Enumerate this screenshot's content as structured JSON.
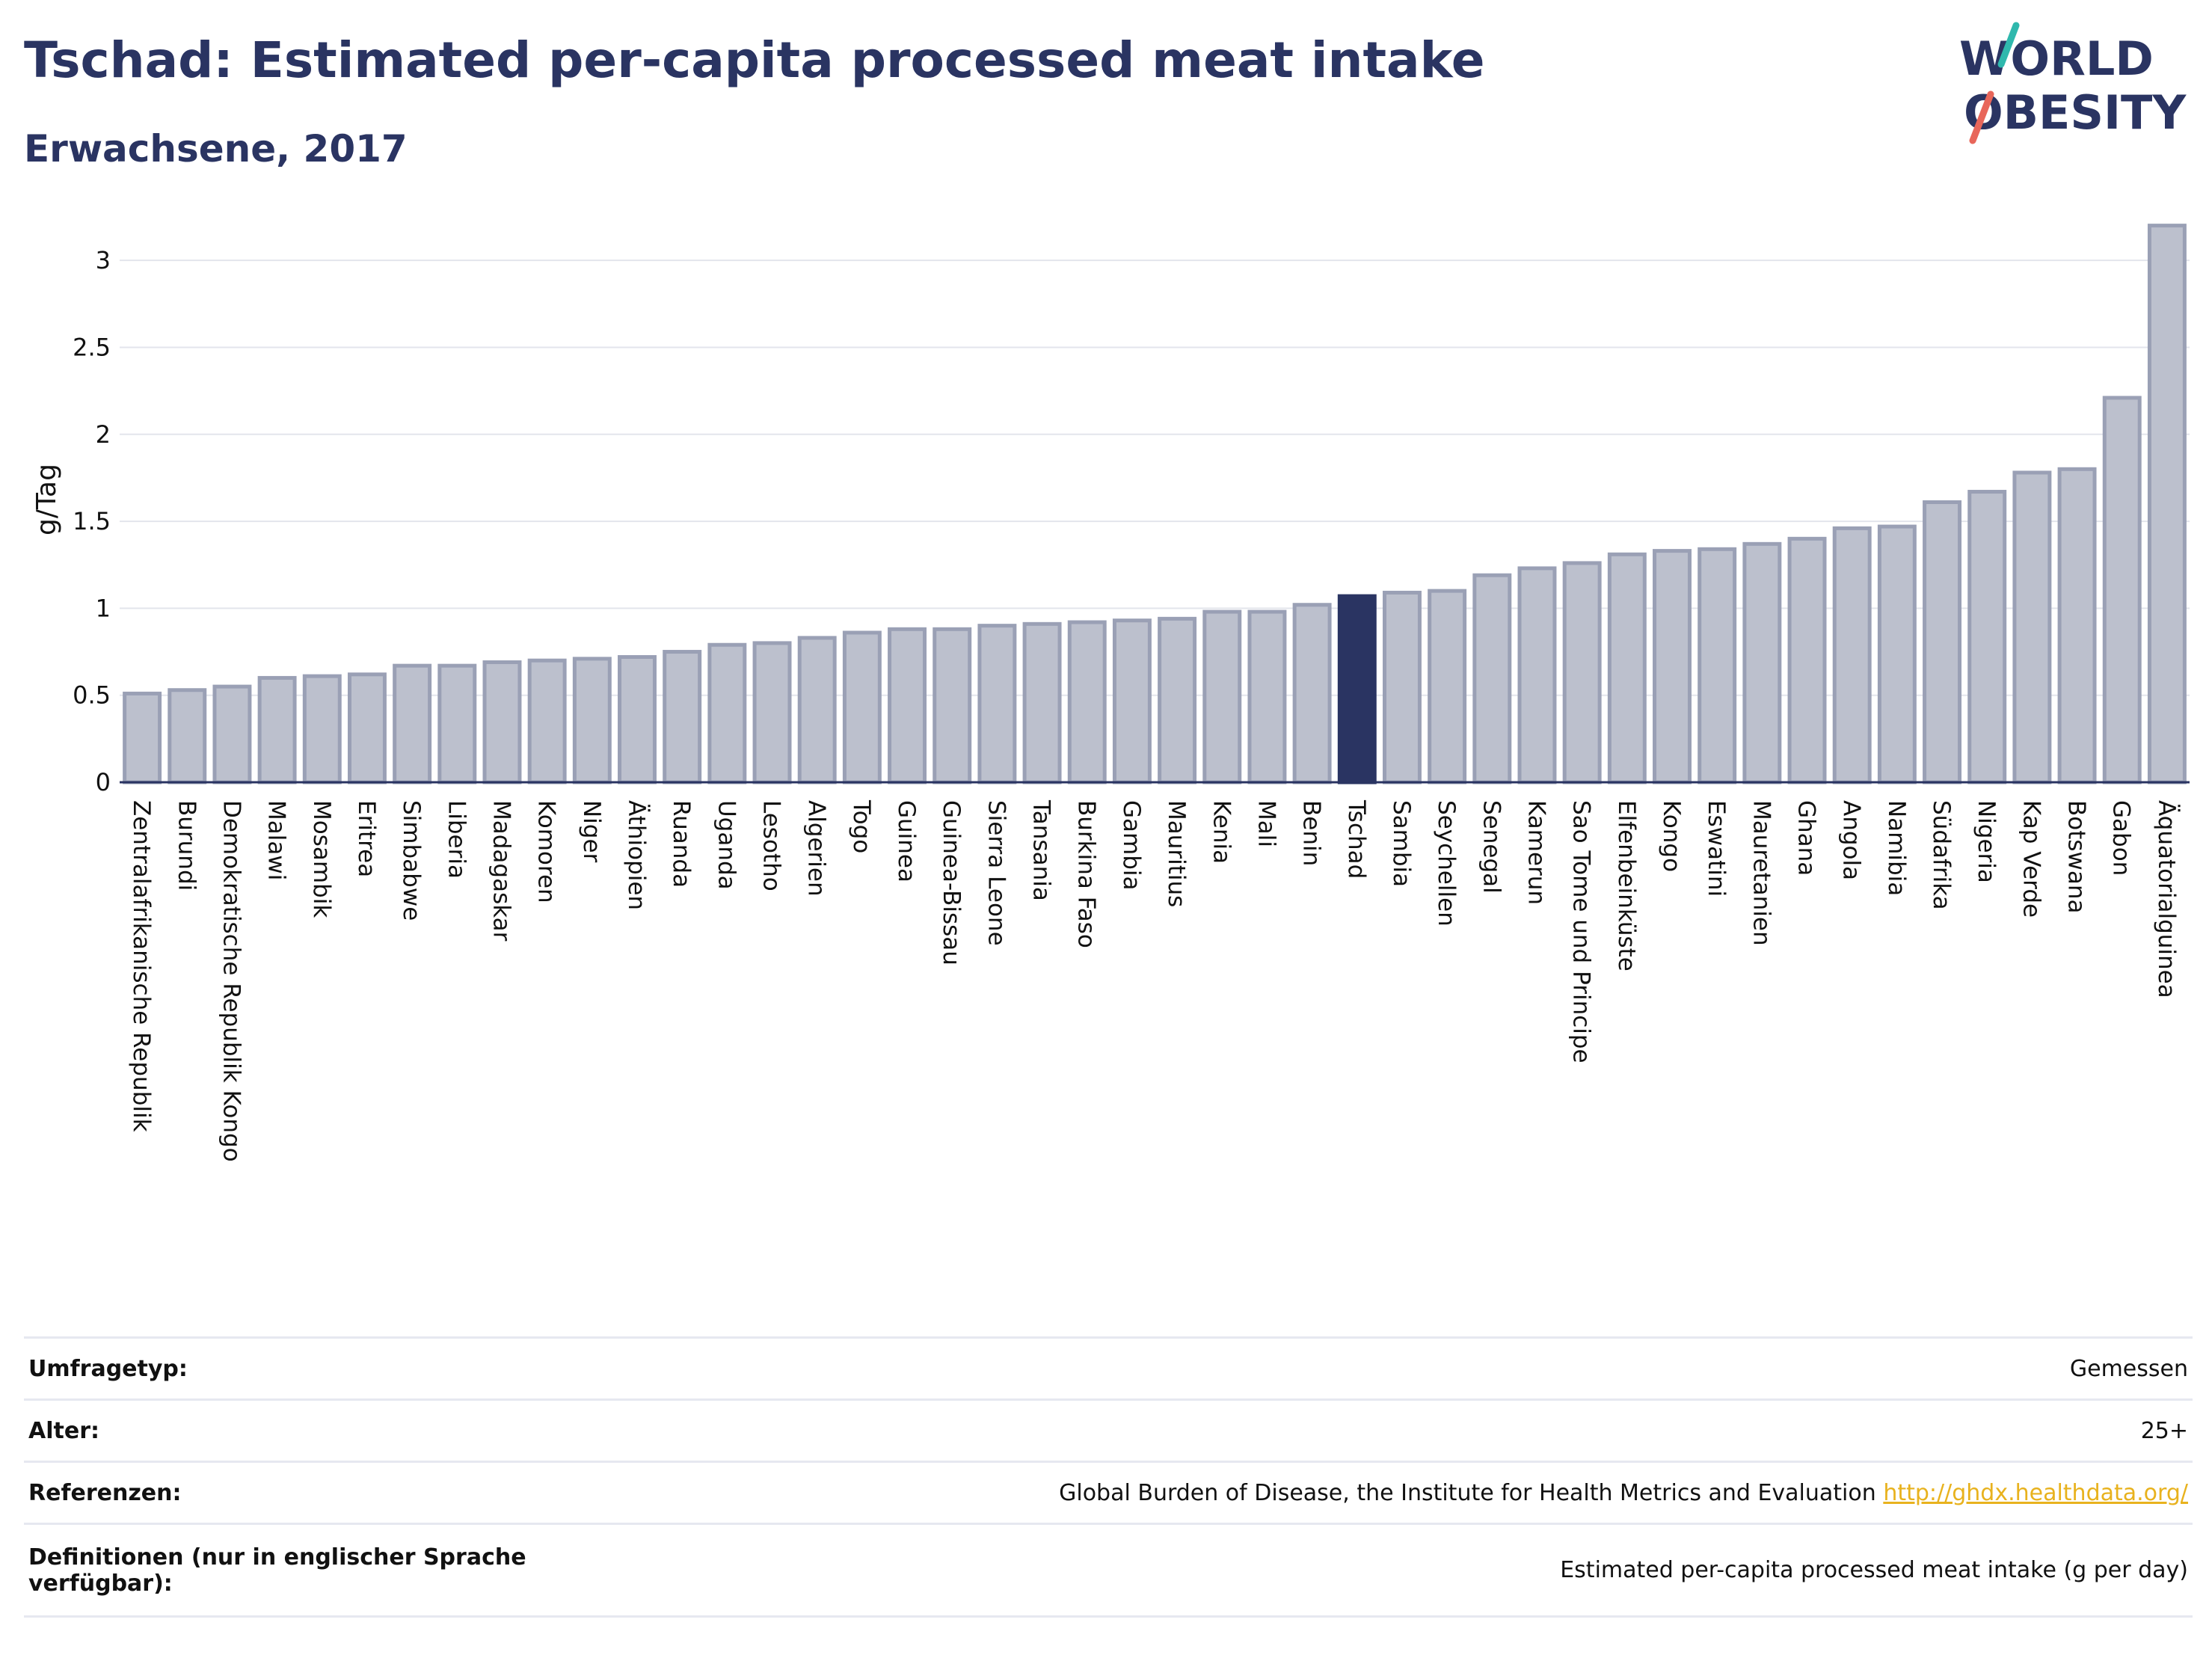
{
  "header": {
    "title": "Tschad: Estimated per-capita processed meat intake",
    "subtitle": "Erwachsene, 2017"
  },
  "logo": {
    "line1": "WORLD",
    "line2": "OBESITY"
  },
  "colors": {
    "bar": "#bcc0cd",
    "bar_border": "#9aa0b5",
    "highlight": "#2a3462",
    "grid": "#e3e5ec",
    "axis": "#2a3462"
  },
  "chart_data": {
    "type": "bar",
    "ylabel": "g/Tag",
    "ylim": [
      0,
      3.25
    ],
    "yticks": [
      0,
      0.5,
      1,
      1.5,
      2,
      2.5,
      3
    ],
    "ytick_labels": [
      "0",
      "0.5",
      "1",
      "1.5",
      "2",
      "2.5",
      "3"
    ],
    "grid": true,
    "highlight": "Tschad",
    "categories": [
      "Zentralafrikanische Republik",
      "Burundi",
      "Demokratische Republik Kongo",
      "Malawi",
      "Mosambik",
      "Eritrea",
      "Simbabwe",
      "Liberia",
      "Madagaskar",
      "Komoren",
      "Niger",
      "Äthiopien",
      "Ruanda",
      "Uganda",
      "Lesotho",
      "Algerien",
      "Togo",
      "Guinea",
      "Guinea-Bissau",
      "Sierra Leone",
      "Tansania",
      "Burkina Faso",
      "Gambia",
      "Mauritius",
      "Kenia",
      "Mali",
      "Benin",
      "Tschad",
      "Sambia",
      "Seychellen",
      "Senegal",
      "Kamerun",
      "Sao Tome und Principe",
      "Elfenbeinküste",
      "Kongo",
      "Eswatini",
      "Mauretanien",
      "Ghana",
      "Angola",
      "Namibia",
      "Südafrika",
      "Nigeria",
      "Kap Verde",
      "Botswana",
      "Gabon",
      "Äquatorialguinea"
    ],
    "values": [
      0.51,
      0.53,
      0.55,
      0.6,
      0.61,
      0.62,
      0.67,
      0.67,
      0.69,
      0.7,
      0.71,
      0.72,
      0.75,
      0.79,
      0.8,
      0.83,
      0.86,
      0.88,
      0.88,
      0.9,
      0.91,
      0.92,
      0.93,
      0.94,
      0.98,
      0.98,
      1.02,
      1.07,
      1.09,
      1.1,
      1.19,
      1.23,
      1.26,
      1.31,
      1.33,
      1.34,
      1.37,
      1.4,
      1.46,
      1.47,
      1.61,
      1.67,
      1.78,
      1.8,
      2.21,
      3.2
    ]
  },
  "info_table": {
    "rows": [
      {
        "label": "Umfragetyp:",
        "value": "Gemessen"
      },
      {
        "label": "Alter:",
        "value": "25+"
      },
      {
        "label": "Referenzen:",
        "value": "Global Burden of Disease, the Institute for Health Metrics and Evaluation",
        "link": "http://ghdx.healthdata.org/"
      },
      {
        "label": "Definitionen (nur in englischer Sprache verfügbar):",
        "value": "Estimated per-capita processed meat intake (g per day)"
      }
    ]
  }
}
